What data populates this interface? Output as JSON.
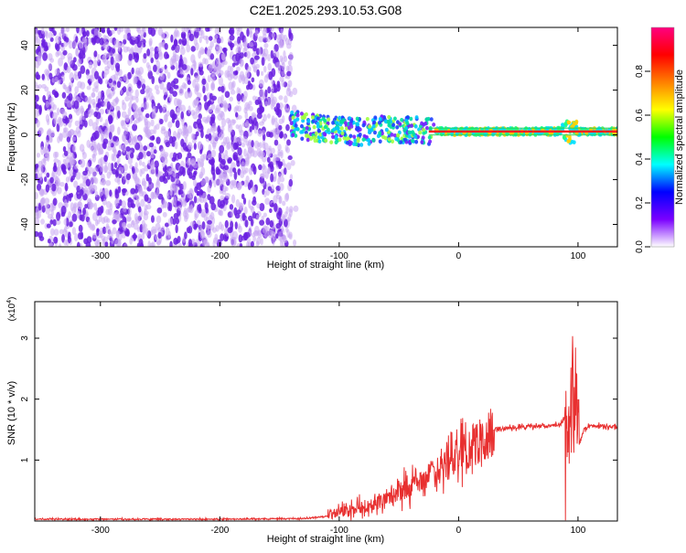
{
  "title": "C2E1.2025.293.10.53.G08",
  "colors": {
    "snr_line": "#e83030",
    "scatter_main": "#6a1ee0",
    "scatter_light": "#c9a8f2",
    "axis": "#000000"
  },
  "chart_data": [
    {
      "type": "heatmap",
      "xlabel": "Height of straight line (km)",
      "ylabel": "Frequency (Hz)",
      "xlim": [
        -355,
        133
      ],
      "ylim": [
        -50,
        48
      ],
      "xticks": [
        -300,
        -200,
        -100,
        0,
        100
      ],
      "xtick_labels": [
        "-300",
        "-200",
        "-100",
        "0",
        "100"
      ],
      "yticks": [
        40,
        20,
        0,
        -20,
        -40
      ],
      "ytick_labels": [
        "40",
        "20",
        "0",
        "-20",
        "-40"
      ],
      "noise_region_km": [
        -355,
        -140
      ],
      "signal_track": {
        "x": [
          -140,
          -120,
          -100,
          -80,
          -60,
          -40,
          -20,
          0,
          20,
          40,
          60,
          80,
          90,
          95,
          100,
          133
        ],
        "y": [
          5,
          3,
          2,
          1,
          3,
          2,
          1.5,
          1.5,
          1.5,
          1.5,
          1.5,
          1.5,
          2,
          1,
          1.5,
          1.5
        ]
      },
      "colorbar": {
        "label": "Normalized spectral amplitude",
        "range": [
          0.0,
          1.0
        ],
        "ticks": [
          0.0,
          0.2,
          0.4,
          0.6,
          0.8
        ],
        "tick_labels": [
          "0.0",
          "0.2",
          "0.4",
          "0.6",
          "0.8"
        ],
        "colors": [
          "#ffffff",
          "#7a00ff",
          "#0000ff",
          "#00ffff",
          "#00ff00",
          "#ffff00",
          "#ff8000",
          "#ff0000",
          "#ff0080"
        ]
      }
    },
    {
      "type": "line",
      "xlabel": "Height of straight line (km)",
      "ylabel": "SNR (10 * v/v)",
      "multiplier_label": "(x10",
      "multiplier_exp": "4",
      "xlim": [
        -355,
        133
      ],
      "ylim": [
        0,
        3.6
      ],
      "xticks": [
        -300,
        -200,
        -100,
        0,
        100
      ],
      "xtick_labels": [
        "-300",
        "-200",
        "-100",
        "0",
        "100"
      ],
      "yticks": [
        1,
        2,
        3
      ],
      "ytick_labels": [
        "1",
        "2",
        "3"
      ],
      "series": [
        {
          "x": [
            -355,
            -200,
            -130,
            -110,
            -100,
            -90,
            -80,
            -70,
            -60,
            -50,
            -40,
            -30,
            -20,
            -10,
            0,
            10,
            20,
            30,
            40,
            60,
            80,
            85,
            90,
            95,
            98,
            100,
            105,
            110,
            120,
            133
          ],
          "y": [
            0.03,
            0.03,
            0.04,
            0.08,
            0.15,
            0.18,
            0.25,
            0.3,
            0.4,
            0.5,
            0.55,
            0.65,
            0.8,
            0.95,
            1.05,
            1.2,
            1.35,
            1.48,
            1.52,
            1.55,
            1.57,
            1.6,
            1.7,
            1.9,
            2.4,
            1.2,
            1.5,
            1.56,
            1.56,
            1.55
          ]
        }
      ]
    }
  ]
}
